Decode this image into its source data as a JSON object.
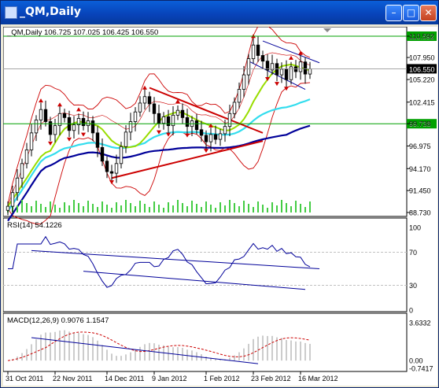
{
  "window": {
    "title": "_QM,Daily",
    "minimize_glyph": "–",
    "maximize_glyph": "□",
    "close_glyph": "✕"
  },
  "colors": {
    "price_bg": "#ffffff",
    "green_line": "#00a000",
    "red": "#cc0000",
    "lime": "#99dd00",
    "cyan": "#33ddee",
    "navy": "#000099",
    "volume": "#44cc44",
    "grid_dash": "#c0c0c0"
  },
  "price_panel": {
    "header": "_QM,Daily  106.725 107.025 106.425 106.550",
    "ticks": [
      "110.592",
      "107.950",
      "105.220",
      "102.415",
      "99.738",
      "96.975",
      "94.170",
      "91.450",
      "88.730"
    ],
    "current_price": "106.550",
    "level_high": "110.592",
    "level_low": "99.738"
  },
  "rsi_panel": {
    "header": "RSI(14) 54.1226",
    "ticks": [
      "100",
      "70",
      "30",
      "0"
    ]
  },
  "macd_panel": {
    "header": "MACD(12,26,9) 0.9076 1.1547",
    "ticks": [
      "3.6332",
      "0.00",
      "-0.7417"
    ]
  },
  "x_axis": {
    "labels": [
      "31 Oct 2011",
      "22 Nov 2011",
      "14 Dec 2011",
      "9 Jan 2012",
      "1 Feb 2012",
      "23 Feb 2012",
      "16 Mar 2012"
    ]
  },
  "chart_data": {
    "type": "line",
    "title": "_QM,Daily",
    "series": [
      {
        "name": "_QM,Daily",
        "values": [
          89.5,
          91.2,
          93.0,
          94.8,
          96.5,
          98.6,
          100.2,
          101.5,
          100.0,
          98.4,
          99.5,
          101.0,
          100.5,
          98.9,
          99.6,
          100.4,
          99.5,
          100.1,
          98.6,
          96.8,
          95.1,
          93.8,
          93.6,
          94.8,
          96.9,
          98.7,
          100.0,
          101.2,
          102.3,
          103.1,
          102.2,
          101.0,
          99.8,
          100.6,
          99.5,
          100.8,
          101.4,
          100.5,
          99.4,
          100.1,
          99.0,
          98.3,
          97.5,
          98.4,
          97.8,
          98.5,
          99.4,
          101.0,
          102.4,
          104.0,
          105.8,
          107.8,
          109.5,
          108.2,
          107.5,
          106.4,
          107.2,
          105.8,
          106.5,
          105.2,
          106.8,
          106.2,
          107.4,
          105.9,
          106.55
        ]
      }
    ]
  }
}
